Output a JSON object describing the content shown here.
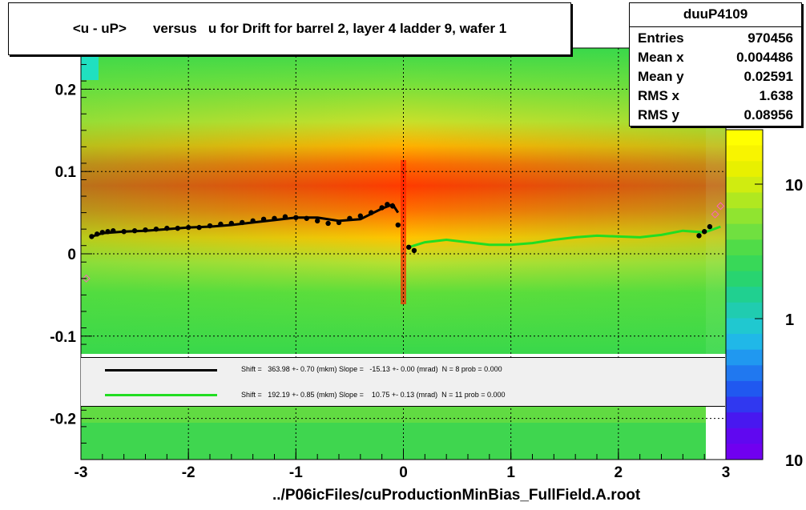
{
  "title": "<u - uP>       versus   u for Drift for barrel 2, layer 4 ladder 9, wafer 1",
  "stats": {
    "name": "duuP4109",
    "rows": [
      {
        "label": "Entries",
        "value": "970456"
      },
      {
        "label": "Mean x",
        "value": "0.004486"
      },
      {
        "label": "Mean y",
        "value": "0.02591"
      },
      {
        "label": "RMS x",
        "value": "1.638"
      },
      {
        "label": "RMS y",
        "value": "0.08956"
      }
    ]
  },
  "legend": [
    {
      "color": "#000000",
      "text": "Shift =   363.98 +- 0.70 (mkm) Slope =   -15.13 +- 0.00 (mrad)  N = 8 prob = 0.000"
    },
    {
      "color": "#22dd22",
      "text": "Shift =   192.19 +- 0.85 (mkm) Slope =    10.75 +- 0.13 (mrad)  N = 11 prob = 0.000"
    }
  ],
  "footer": "../P06icFiles/cuProductionMinBias_FullField.A.root",
  "chart_data": {
    "type": "heatmap",
    "xlim": [
      -3,
      3
    ],
    "ylim": [
      -0.25,
      0.25
    ],
    "x_ticks": [
      "-3",
      "-2",
      "-1",
      "0",
      "1",
      "2",
      "3"
    ],
    "y_ticks": [
      "-0.2",
      "-0.1",
      "0",
      "0.1",
      "0.2"
    ],
    "y_tick_values": [
      -0.2,
      -0.1,
      0,
      0.1,
      0.2
    ],
    "x_tick_values": [
      -3,
      -2,
      -1,
      0,
      1,
      2,
      3
    ],
    "colorbar": {
      "scale": "log",
      "ticks": [
        "10",
        "1",
        "10"
      ]
    },
    "grid": true,
    "series": [
      {
        "name": "black fit",
        "color": "#000000",
        "x": [
          -2.9,
          -2.8,
          -2.6,
          -2.4,
          -2.2,
          -2.0,
          -1.8,
          -1.6,
          -1.4,
          -1.2,
          -1.0,
          -0.8,
          -0.6,
          -0.4,
          -0.2,
          -0.1,
          -0.05
        ],
        "y": [
          0.021,
          0.025,
          0.027,
          0.028,
          0.03,
          0.032,
          0.033,
          0.035,
          0.038,
          0.041,
          0.044,
          0.044,
          0.04,
          0.042,
          0.055,
          0.06,
          0.05
        ]
      },
      {
        "name": "green fit",
        "color": "#22dd22",
        "x": [
          0.05,
          0.2,
          0.4,
          0.6,
          0.8,
          1.0,
          1.2,
          1.4,
          1.6,
          1.8,
          2.0,
          2.2,
          2.4,
          2.6,
          2.8,
          2.95
        ],
        "y": [
          0.008,
          0.014,
          0.017,
          0.014,
          0.011,
          0.011,
          0.013,
          0.017,
          0.02,
          0.022,
          0.021,
          0.02,
          0.023,
          0.028,
          0.026,
          0.033
        ]
      }
    ],
    "black_points": {
      "x": [
        -2.9,
        -2.85,
        -2.8,
        -2.75,
        -2.7,
        -2.6,
        -2.5,
        -2.4,
        -2.3,
        -2.2,
        -2.1,
        -2.0,
        -1.9,
        -1.8,
        -1.7,
        -1.6,
        -1.5,
        -1.4,
        -1.3,
        -1.2,
        -1.1,
        -1.0,
        -0.9,
        -0.8,
        -0.7,
        -0.6,
        -0.5,
        -0.4,
        -0.3,
        -0.2,
        -0.15,
        -0.1,
        -0.05,
        0.05,
        0.1,
        2.75,
        2.8,
        2.85
      ],
      "y": [
        0.021,
        0.024,
        0.026,
        0.027,
        0.028,
        0.027,
        0.028,
        0.029,
        0.03,
        0.031,
        0.031,
        0.032,
        0.032,
        0.034,
        0.036,
        0.037,
        0.038,
        0.04,
        0.042,
        0.043,
        0.045,
        0.044,
        0.043,
        0.04,
        0.037,
        0.038,
        0.043,
        0.046,
        0.05,
        0.056,
        0.06,
        0.058,
        0.035,
        0.008,
        0.004,
        0.022,
        0.027,
        0.033
      ]
    },
    "pink_points": {
      "x": [
        -2.95,
        2.9,
        2.95
      ],
      "y": [
        -0.03,
        0.048,
        0.058
      ]
    }
  }
}
